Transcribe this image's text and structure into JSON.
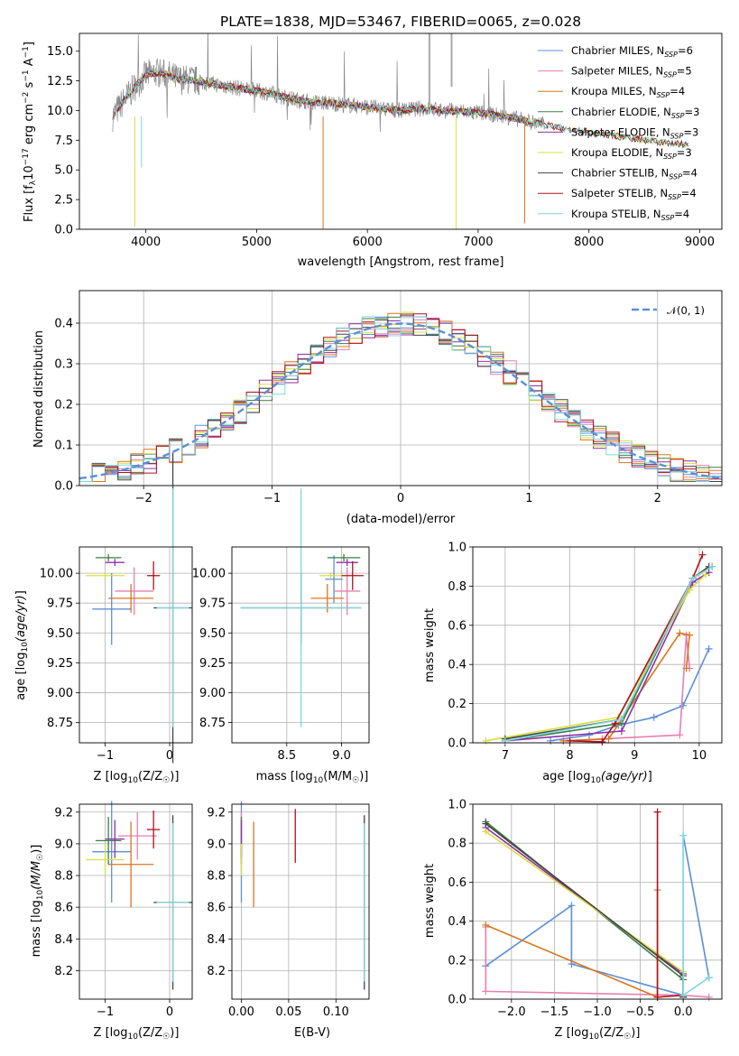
{
  "chart_data": [
    {
      "type": "line",
      "title": "PLATE=1838, MJD=53467, FIBERID=0065, z=0.028",
      "xlabel": "wavelength [Angstrom, rest frame]",
      "ylabel_main": "Flux [f",
      "ylabel_sub": "λ",
      "ylabel_mid": "10",
      "ylabel_exp": "−17",
      "ylabel_rest": " erg cm",
      "ylabel_exp2": "−2",
      "ylabel_s": " s",
      "ylabel_exp3": "−1",
      "ylabel_a": " A",
      "ylabel_exp4": "−1",
      "ylabel_end": "]",
      "xlim": [
        3400,
        9200
      ],
      "ylim": [
        0,
        16.5
      ],
      "xticks": [
        "4000",
        "5000",
        "6000",
        "7000",
        "8000",
        "9000"
      ],
      "yticks": [
        "0.0",
        "2.5",
        "5.0",
        "7.5",
        "10.0",
        "12.5",
        "15.0"
      ],
      "legend_position": "top-right",
      "legend": [
        {
          "name": "Chabrier MILES, N",
          "sub": "SSP",
          "val": "=6",
          "color": "#5b8fd6"
        },
        {
          "name": "Salpeter MILES, N",
          "sub": "SSP",
          "val": "=5",
          "color": "#e87fb0"
        },
        {
          "name": "Kroupa MILES, N",
          "sub": "SSP",
          "val": "=4",
          "color": "#d9771f"
        },
        {
          "name": "Chabrier ELODIE, N",
          "sub": "SSP",
          "val": "=3",
          "color": "#3a7d44"
        },
        {
          "name": "Salpeter ELODIE, N",
          "sub": "SSP",
          "val": "=3",
          "color": "#8e2fa8"
        },
        {
          "name": "Kroupa ELODIE, N",
          "sub": "SSP",
          "val": "=3",
          "color": "#d7df3c"
        },
        {
          "name": "Chabrier STELIB, N",
          "sub": "SSP",
          "val": "=4",
          "color": "#444444"
        },
        {
          "name": "Salpeter STELIB, N",
          "sub": "SSP",
          "val": "=4",
          "color": "#b0101a"
        },
        {
          "name": "Kroupa STELIB, N",
          "sub": "SSP",
          "val": "=4",
          "color": "#7fd7df"
        }
      ],
      "data_color": "#888888",
      "spectrum_x": [
        3700,
        3800,
        3900,
        4000,
        4100,
        4200,
        4300,
        4400,
        4500,
        4700,
        4900,
        5100,
        5300,
        5500,
        5700,
        5900,
        6100,
        6300,
        6500,
        6700,
        6900,
        7100,
        7300,
        7500,
        7700,
        7900,
        8100,
        8300,
        8500,
        8700,
        8900,
        9000
      ],
      "spectrum_y": [
        9.5,
        10.8,
        12.0,
        13.0,
        13.2,
        13.0,
        12.6,
        12.6,
        12.4,
        12.1,
        11.8,
        11.5,
        11.0,
        10.7,
        10.6,
        10.4,
        10.2,
        10.0,
        10.2,
        10.0,
        9.9,
        9.7,
        9.4,
        9.0,
        8.6,
        8.3,
        8.0,
        7.8,
        7.5,
        7.3,
        7.1,
        7.0
      ]
    },
    {
      "type": "line",
      "xlabel": "(data-model)/error",
      "ylabel": "Normed distribution",
      "xlim": [
        -2.5,
        2.5
      ],
      "ylim": [
        0,
        0.48
      ],
      "xticks": [
        "−2",
        "−1",
        "0",
        "1",
        "2"
      ],
      "yticks": [
        "0.0",
        "0.1",
        "0.2",
        "0.3",
        "0.4"
      ],
      "legend_position": "top-right",
      "legend": [
        {
          "name": "𝒩(0, 1)",
          "color": "#5b8fd6"
        }
      ],
      "gaussian": {
        "mean": 0,
        "sigma": 1
      }
    },
    {
      "type": "scatter",
      "xlabel_pre": "Z [log",
      "xlabel_sub": "10",
      "xlabel_post": "(Z/Z",
      "xlabel_sun": "☉",
      "xlabel_end": ")]",
      "ylabel": "age  [log10(age/yr)]",
      "xlim": [
        -1.4,
        0.35
      ],
      "ylim": [
        8.58,
        10.22
      ],
      "xticks": [
        "−1",
        "0"
      ],
      "yticks": [
        "8.75",
        "9.00",
        "9.25",
        "9.50",
        "9.75",
        "10.00"
      ],
      "points": [
        {
          "x": -0.9,
          "y": 9.7,
          "xerr": 0.3,
          "yerr": 0.3,
          "color": "#5b8fd6"
        },
        {
          "x": -0.55,
          "y": 9.85,
          "xerr": 0.3,
          "yerr": 0.2,
          "color": "#e87fb0"
        },
        {
          "x": -0.6,
          "y": 9.79,
          "xerr": 0.35,
          "yerr": 0.12,
          "color": "#d9771f"
        },
        {
          "x": -0.95,
          "y": 10.13,
          "xerr": 0.2,
          "yerr": 0.03,
          "color": "#3a7d44"
        },
        {
          "x": -0.85,
          "y": 10.09,
          "xerr": 0.15,
          "yerr": 0.03,
          "color": "#8e2fa8"
        },
        {
          "x": -1.0,
          "y": 9.98,
          "xerr": 0.3,
          "yerr": 0.03,
          "color": "#d7df3c"
        },
        {
          "x": 0.05,
          "y": 9.71,
          "xerr": 0.3,
          "yerr": 1.3,
          "color": "#444444"
        },
        {
          "x": -0.25,
          "y": 9.98,
          "xerr": 0.1,
          "yerr": 0.12,
          "color": "#b0101a"
        },
        {
          "x": 0.05,
          "y": 9.71,
          "xerr": 0.25,
          "yerr": 1.0,
          "color": "#7fd7df"
        }
      ]
    },
    {
      "type": "scatter",
      "xlabel_pre": "mass [log",
      "xlabel_sub": "10",
      "xlabel_post": "(M/M",
      "xlabel_sun": "☉",
      "xlabel_end": ")]",
      "xlim": [
        8.0,
        9.25
      ],
      "ylim": [
        8.58,
        10.22
      ],
      "xticks": [
        "8.5",
        "9.0"
      ],
      "yticks": [
        "8.75",
        "9.00",
        "9.25",
        "9.50",
        "9.75",
        "10.00"
      ],
      "points": [
        {
          "x": 8.93,
          "y": 9.95,
          "xerr": 0.08,
          "yerr": 0.2,
          "color": "#5b8fd6"
        },
        {
          "x": 9.05,
          "y": 9.85,
          "xerr": 0.12,
          "yerr": 0.2,
          "color": "#e87fb0"
        },
        {
          "x": 8.87,
          "y": 9.79,
          "xerr": 0.15,
          "yerr": 0.12,
          "color": "#d9771f"
        },
        {
          "x": 9.02,
          "y": 10.13,
          "xerr": 0.15,
          "yerr": 0.03,
          "color": "#3a7d44"
        },
        {
          "x": 9.05,
          "y": 10.09,
          "xerr": 0.1,
          "yerr": 0.03,
          "color": "#8e2fa8"
        },
        {
          "x": 8.9,
          "y": 9.98,
          "xerr": 0.1,
          "yerr": 0.03,
          "color": "#d7df3c"
        },
        {
          "x": 8.63,
          "y": 9.71,
          "xerr": 0.55,
          "yerr": 0.3,
          "color": "#444444"
        },
        {
          "x": 9.1,
          "y": 9.98,
          "xerr": 0.1,
          "yerr": 0.12,
          "color": "#b0101a"
        },
        {
          "x": 8.63,
          "y": 9.71,
          "xerr": 0.55,
          "yerr": 1.0,
          "color": "#7fd7df"
        }
      ]
    },
    {
      "type": "line",
      "xlabel": "age  [log10(age/yr)]",
      "ylabel": "mass weight",
      "xlim": [
        6.5,
        10.35
      ],
      "ylim": [
        0,
        1
      ],
      "xticks": [
        "7",
        "8",
        "9",
        "10"
      ],
      "yticks": [
        "0.0",
        "0.2",
        "0.4",
        "0.6",
        "0.8",
        "1.0"
      ],
      "series": [
        {
          "color": "#5b8fd6",
          "x": [
            7.7,
            8.3,
            8.75,
            9.3,
            9.75,
            10.15
          ],
          "y": [
            0.01,
            0.04,
            0.09,
            0.13,
            0.19,
            0.48
          ]
        },
        {
          "color": "#e87fb0",
          "x": [
            7.9,
            8.5,
            9.7,
            9.8,
            9.85
          ],
          "y": [
            0.01,
            0.02,
            0.04,
            0.55,
            0.38
          ]
        },
        {
          "color": "#d9771f",
          "x": [
            7.9,
            8.6,
            9.7,
            9.85,
            9.8
          ],
          "y": [
            0.01,
            0.02,
            0.56,
            0.55,
            0.38
          ]
        },
        {
          "color": "#3a7d44",
          "x": [
            7.0,
            8.8,
            9.9,
            10.2
          ],
          "y": [
            0.01,
            0.1,
            0.84,
            0.9
          ]
        },
        {
          "color": "#8e2fa8",
          "x": [
            7.0,
            8.8,
            9.9,
            10.15
          ],
          "y": [
            0.01,
            0.06,
            0.82,
            0.87
          ]
        },
        {
          "color": "#d7df3c",
          "x": [
            6.7,
            8.75,
            9.85,
            10.1
          ],
          "y": [
            0.01,
            0.13,
            0.78,
            0.86
          ]
        },
        {
          "color": "#444444",
          "x": [
            7.0,
            8.8,
            9.9,
            10.15
          ],
          "y": [
            0.02,
            0.12,
            0.84,
            0.9
          ]
        },
        {
          "color": "#b0101a",
          "x": [
            8.0,
            8.5,
            8.7,
            9.9,
            10.05
          ],
          "y": [
            0.01,
            0.005,
            0.1,
            0.84,
            0.96
          ]
        },
        {
          "color": "#7fd7df",
          "x": [
            7.0,
            8.8,
            9.9,
            10.2
          ],
          "y": [
            0.01,
            0.12,
            0.84,
            0.9
          ]
        }
      ]
    },
    {
      "type": "scatter",
      "xlabel_pre": "Z [log",
      "xlabel_sub": "10",
      "xlabel_post": "(Z/Z",
      "xlabel_sun": "☉",
      "xlabel_end": ")]",
      "ylabel": "mass [log10(M/M☉)]",
      "xlim": [
        -1.4,
        0.35
      ],
      "ylim": [
        8.02,
        9.25
      ],
      "xticks": [
        "−1",
        "0"
      ],
      "yticks": [
        "8.2",
        "8.4",
        "8.6",
        "8.8",
        "9.0",
        "9.2"
      ],
      "points": [
        {
          "x": -0.9,
          "y": 8.95,
          "xerr": 0.3,
          "yerr": 0.32,
          "color": "#5b8fd6"
        },
        {
          "x": -0.5,
          "y": 9.05,
          "xerr": 0.3,
          "yerr": 0.15,
          "color": "#e87fb0"
        },
        {
          "x": -0.6,
          "y": 8.87,
          "xerr": 0.35,
          "yerr": 0.27,
          "color": "#d9771f"
        },
        {
          "x": -0.95,
          "y": 9.02,
          "xerr": 0.2,
          "yerr": 0.15,
          "color": "#3a7d44"
        },
        {
          "x": -0.85,
          "y": 9.03,
          "xerr": 0.15,
          "yerr": 0.12,
          "color": "#8e2fa8"
        },
        {
          "x": -1.0,
          "y": 8.9,
          "xerr": 0.3,
          "yerr": 0.1,
          "color": "#d7df3c"
        },
        {
          "x": 0.05,
          "y": 8.63,
          "xerr": 0.3,
          "yerr": 0.55,
          "color": "#444444"
        },
        {
          "x": -0.25,
          "y": 9.09,
          "xerr": 0.1,
          "yerr": 0.12,
          "color": "#b0101a"
        },
        {
          "x": 0.05,
          "y": 8.63,
          "xerr": 0.25,
          "yerr": 0.5,
          "color": "#7fd7df"
        }
      ]
    },
    {
      "type": "scatter",
      "xlabel": "E(B-V)",
      "xlim": [
        -0.01,
        0.135
      ],
      "ylim": [
        8.02,
        9.25
      ],
      "xticks": [
        "0.00",
        "0.05",
        "0.10"
      ],
      "yticks": [
        "8.2",
        "8.4",
        "8.6",
        "8.8",
        "9.0",
        "9.2"
      ],
      "points": [
        {
          "x": 0.0,
          "y": 8.95,
          "xerr": 0,
          "yerr": 0.32,
          "color": "#5b8fd6"
        },
        {
          "x": 0.0,
          "y": 9.05,
          "xerr": 0,
          "yerr": 0.15,
          "color": "#e87fb0"
        },
        {
          "x": 0.013,
          "y": 8.87,
          "xerr": 0,
          "yerr": 0.27,
          "color": "#d9771f"
        },
        {
          "x": 0.0,
          "y": 9.02,
          "xerr": 0,
          "yerr": 0.15,
          "color": "#3a7d44"
        },
        {
          "x": 0.0,
          "y": 9.03,
          "xerr": 0,
          "yerr": 0.12,
          "color": "#8e2fa8"
        },
        {
          "x": 0.0,
          "y": 8.9,
          "xerr": 0,
          "yerr": 0.1,
          "color": "#d7df3c"
        },
        {
          "x": 0.13,
          "y": 8.63,
          "xerr": 0,
          "yerr": 0.55,
          "color": "#444444"
        },
        {
          "x": 0.057,
          "y": 9.05,
          "xerr": 0,
          "yerr": 0.17,
          "color": "#b0101a"
        },
        {
          "x": 0.13,
          "y": 8.63,
          "xerr": 0,
          "yerr": 0.5,
          "color": "#7fd7df"
        }
      ]
    },
    {
      "type": "line",
      "xlabel_pre": "Z [log",
      "xlabel_sub": "10",
      "xlabel_post": "(Z/Z",
      "xlabel_sun": "☉",
      "xlabel_end": ")]",
      "ylabel": "mass weight",
      "xlim": [
        -2.45,
        0.45
      ],
      "ylim": [
        0,
        1
      ],
      "xticks": [
        "−2.0",
        "−1.5",
        "−1.0",
        "−0.5",
        "0.0"
      ],
      "yticks": [
        "0.0",
        "0.2",
        "0.4",
        "0.6",
        "0.8",
        "1.0"
      ],
      "series": [
        {
          "color": "#5b8fd6",
          "x": [
            -2.3,
            -1.3,
            -1.3,
            0.0,
            0.0,
            0.3
          ],
          "y": [
            0.17,
            0.48,
            0.18,
            0.02,
            0.84,
            0.11
          ]
        },
        {
          "color": "#e87fb0",
          "x": [
            -2.3,
            -2.3,
            0.0,
            0.3
          ],
          "y": [
            0.37,
            0.04,
            0.02,
            0.01
          ]
        },
        {
          "color": "#d9771f",
          "x": [
            -2.3,
            -0.3,
            -0.3,
            -0.3
          ],
          "y": [
            0.38,
            0.01,
            0.56,
            0.01
          ]
        },
        {
          "color": "#3a7d44",
          "x": [
            -2.3,
            0.0,
            0.0
          ],
          "y": [
            0.91,
            0.1,
            0.01
          ]
        },
        {
          "color": "#8e2fa8",
          "x": [
            -2.3,
            0.0,
            0.0
          ],
          "y": [
            0.88,
            0.13,
            0.01
          ]
        },
        {
          "color": "#d7df3c",
          "x": [
            -2.3,
            0.0,
            0.0
          ],
          "y": [
            0.86,
            0.14,
            0.02
          ]
        },
        {
          "color": "#444444",
          "x": [
            -2.3,
            0.0,
            0.0
          ],
          "y": [
            0.9,
            0.12,
            0.01
          ]
        },
        {
          "color": "#b0101a",
          "x": [
            -0.3,
            -0.3,
            0.0
          ],
          "y": [
            0.96,
            0.01,
            0.02
          ]
        },
        {
          "color": "#7fd7df",
          "x": [
            0.0,
            0.0,
            0.3
          ],
          "y": [
            0.84,
            0.02,
            0.11
          ]
        }
      ]
    }
  ]
}
